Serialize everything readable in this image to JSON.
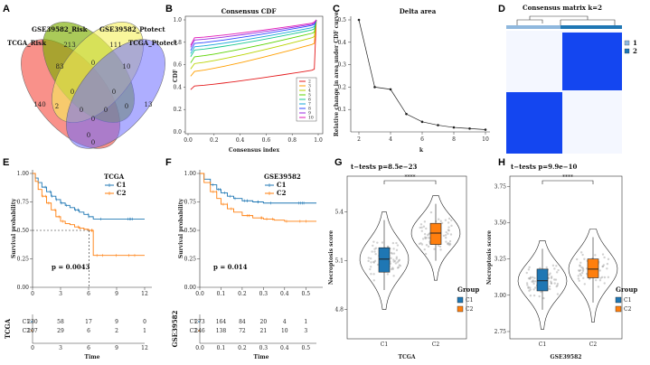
{
  "panel_labels": {
    "A": "A",
    "B": "B",
    "C": "C",
    "D": "D",
    "E": "E",
    "F": "F",
    "G": "G",
    "H": "H"
  },
  "venn": {
    "sets": [
      "TCGA_Risk",
      "GSE39582_Risk",
      "GSE39582_Ptotect",
      "TCGA_Ptotect"
    ],
    "colors": [
      "#f8766d",
      "#7cae00",
      "#f5f05a",
      "#6b6bff"
    ],
    "counts": {
      "r1": "140",
      "r2": "213",
      "r3": "111",
      "r4": "13",
      "r12": "83",
      "r23": "0",
      "r34": "10",
      "r13": "0",
      "r24": "0",
      "r123": "0",
      "r234": "0",
      "r1234": "0",
      "r14": "2",
      "r124": "0",
      "r134": "0",
      "r14b": "0"
    }
  },
  "chart_data": [
    {
      "id": "B",
      "type": "line",
      "title": "Consensus CDF",
      "xlabel": "Consensus index",
      "ylabel": "CDF",
      "xlim": [
        0,
        1
      ],
      "ylim": [
        0,
        1
      ],
      "xticks": [
        "0.0",
        "0.2",
        "0.4",
        "0.6",
        "0.8",
        "1.0"
      ],
      "yticks": [
        "0.0",
        "0.2",
        "0.4",
        "0.6",
        "0.8",
        "1.0"
      ],
      "legend": [
        "2",
        "3",
        "4",
        "5",
        "6",
        "7",
        "8",
        "9",
        "10"
      ],
      "colors": [
        "#e41a1c",
        "#ff9f00",
        "#b9d300",
        "#5bd300",
        "#19c98f",
        "#16a6d9",
        "#2f47ff",
        "#9a29e0",
        "#e117b6"
      ],
      "series_start": [
        0.41,
        0.54,
        0.61,
        0.67,
        0.73,
        0.76,
        0.79,
        0.82,
        0.84
      ],
      "series_end": [
        0.55,
        0.78,
        0.84,
        0.88,
        0.91,
        0.93,
        0.95,
        0.96,
        0.97
      ]
    },
    {
      "id": "C",
      "type": "line",
      "title": "Delta area",
      "xlabel": "k",
      "ylabel": "Relative change in area under CDF curve",
      "x": [
        2,
        3,
        4,
        5,
        6,
        7,
        8,
        9,
        10
      ],
      "y": [
        0.5,
        0.2,
        0.19,
        0.08,
        0.045,
        0.03,
        0.02,
        0.015,
        0.01
      ],
      "xticks": [
        "2",
        "4",
        "6",
        "8",
        "10"
      ],
      "yticks": [
        "0.1",
        "0.2",
        "0.3",
        "0.4",
        "0.5"
      ],
      "xlim": [
        2,
        10
      ],
      "ylim": [
        0,
        0.5
      ]
    },
    {
      "id": "D",
      "type": "heatmap",
      "title": "Consensus matrix k=2",
      "legend": [
        "1",
        "2"
      ],
      "cluster_colors": [
        "#8fb8de",
        "#1f77b4"
      ],
      "fill": "#1446f0"
    },
    {
      "id": "E",
      "type": "line",
      "subtype": "kaplan-meier",
      "legend_title": "TCGA",
      "legend": [
        "C1",
        "C2"
      ],
      "colors": [
        "#1f77b4",
        "#ff7f0e"
      ],
      "xlabel": "Time",
      "ylabel": "Survival probability",
      "xlim": [
        0,
        12
      ],
      "ylim": [
        0,
        1
      ],
      "xticks": [
        "0",
        "3",
        "6",
        "9",
        "12"
      ],
      "yticks": [
        "0.00",
        "0.25",
        "0.50",
        "0.75",
        "1.00"
      ],
      "pvalue": "p = 0.0043",
      "risk_label": "TCGA",
      "risk_rows": [
        {
          "name": "C1",
          "counts": [
            "230",
            "58",
            "17",
            "9",
            "0"
          ]
        },
        {
          "name": "C2",
          "counts": [
            "207",
            "29",
            "6",
            "2",
            "1"
          ]
        }
      ],
      "curves": [
        {
          "x": [
            0,
            0.3,
            0.6,
            1,
            1.5,
            2,
            2.5,
            3,
            3.5,
            4,
            4.5,
            5,
            5.5,
            6,
            6.5,
            7,
            9,
            11,
            12
          ],
          "y": [
            1,
            0.96,
            0.92,
            0.88,
            0.84,
            0.8,
            0.77,
            0.74,
            0.72,
            0.7,
            0.68,
            0.66,
            0.64,
            0.62,
            0.6,
            0.6,
            0.6,
            0.6,
            0.6
          ]
        },
        {
          "x": [
            0,
            0.3,
            0.6,
            1,
            1.5,
            2,
            2.5,
            3,
            3.5,
            4,
            4.5,
            5,
            5.5,
            6,
            6.5,
            7,
            9,
            11,
            12
          ],
          "y": [
            1,
            0.93,
            0.86,
            0.8,
            0.74,
            0.68,
            0.62,
            0.58,
            0.56,
            0.55,
            0.53,
            0.52,
            0.51,
            0.5,
            0.28,
            0.28,
            0.28,
            0.28,
            0.28
          ]
        }
      ]
    },
    {
      "id": "F",
      "type": "line",
      "subtype": "kaplan-meier",
      "legend_title": "GSE39582",
      "legend": [
        "C1",
        "C2"
      ],
      "colors": [
        "#1f77b4",
        "#ff7f0e"
      ],
      "xlabel": "Time",
      "ylabel": "Survival probability",
      "xlim": [
        0,
        0.55
      ],
      "ylim": [
        0,
        1
      ],
      "xticks": [
        "0.0",
        "0.1",
        "0.2",
        "0.3",
        "0.4",
        "0.5"
      ],
      "yticks": [
        "0.00",
        "0.25",
        "0.50",
        "0.75",
        "1.00"
      ],
      "pvalue": "p = 0.014",
      "risk_label": "GSE39582",
      "risk_rows": [
        {
          "name": "C1",
          "counts": [
            "273",
            "164",
            "84",
            "20",
            "4",
            "1"
          ]
        },
        {
          "name": "C2",
          "counts": [
            "246",
            "138",
            "72",
            "21",
            "10",
            "3"
          ]
        }
      ],
      "curves": [
        {
          "x": [
            0,
            0.02,
            0.05,
            0.08,
            0.1,
            0.13,
            0.16,
            0.2,
            0.25,
            0.3,
            0.35,
            0.4,
            0.45,
            0.5,
            0.55
          ],
          "y": [
            1,
            0.95,
            0.9,
            0.86,
            0.83,
            0.8,
            0.78,
            0.76,
            0.75,
            0.74,
            0.74,
            0.74,
            0.74,
            0.74,
            0.74
          ]
        },
        {
          "x": [
            0,
            0.02,
            0.05,
            0.08,
            0.1,
            0.13,
            0.16,
            0.2,
            0.25,
            0.3,
            0.35,
            0.4,
            0.45,
            0.5,
            0.55
          ],
          "y": [
            1,
            0.92,
            0.84,
            0.78,
            0.73,
            0.69,
            0.66,
            0.63,
            0.61,
            0.6,
            0.59,
            0.58,
            0.58,
            0.58,
            0.58
          ]
        }
      ]
    },
    {
      "id": "G",
      "type": "violin",
      "title": "t−tests p=8.5e−23",
      "signif": "****",
      "xlabel": "TCGA",
      "ylabel": "Necroptosis score",
      "categories": [
        "C1",
        "C2"
      ],
      "yticks": [
        "4.8",
        "5.1",
        "5.4"
      ],
      "ylim": [
        4.62,
        5.62
      ],
      "medians": [
        5.11,
        5.27
      ],
      "q1": [
        5.03,
        5.2
      ],
      "q3": [
        5.18,
        5.33
      ],
      "whisker_low": [
        4.92,
        5.1
      ],
      "whisker_high": [
        5.35,
        5.45
      ],
      "legend_title": "Group",
      "legend": [
        "C1",
        "C2"
      ],
      "colors": [
        "#1f77b4",
        "#ff7f0e"
      ]
    },
    {
      "id": "H",
      "type": "violin",
      "title": "t−tests p=9.9e−10",
      "signif": "****",
      "xlabel": "GSE39582",
      "ylabel": "Necroptosis score",
      "categories": [
        "C1",
        "C2"
      ],
      "yticks": [
        "2.75",
        "3.00",
        "3.25",
        "3.50",
        "3.75"
      ],
      "ylim": [
        2.7,
        3.82
      ],
      "medians": [
        3.1,
        3.18
      ],
      "q1": [
        3.03,
        3.12
      ],
      "q3": [
        3.18,
        3.25
      ],
      "whisker_low": [
        2.9,
        2.95
      ],
      "whisker_high": [
        3.32,
        3.4
      ],
      "legend_title": "Group",
      "legend": [
        "C1",
        "C2"
      ],
      "colors": [
        "#1f77b4",
        "#ff7f0e"
      ]
    }
  ]
}
